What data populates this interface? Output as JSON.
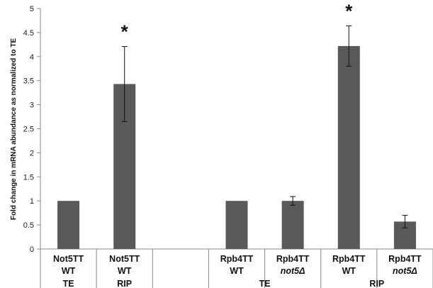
{
  "chart_data": {
    "type": "bar",
    "title": "",
    "ylabel": "Fold change in mRNA abundance as normalized to TE",
    "xlabel": "",
    "ylim": [
      0,
      5
    ],
    "yticks": [
      "0",
      "0.5",
      "1",
      "1.5",
      "2",
      "2.5",
      "3",
      "3.5",
      "4",
      "4.5",
      "5"
    ],
    "bar_color": "#595959",
    "grid": false,
    "categories": [
      {
        "line1": "Not5TT",
        "line2": "WT",
        "line3": "TE",
        "value": 1.0,
        "err": 0.0,
        "star": "",
        "italic2": false
      },
      {
        "line1": "Not5TT",
        "line2": "WT",
        "line3": "RIP",
        "value": 3.43,
        "err": 0.78,
        "star": "*",
        "italic2": false
      },
      {
        "line1": "",
        "line2": "",
        "line3": "",
        "value": null,
        "err": null,
        "star": "",
        "italic2": false
      },
      {
        "line1": "Rpb4TT",
        "line2": "WT",
        "line3": "",
        "value": 1.0,
        "err": 0.0,
        "star": "",
        "italic2": false
      },
      {
        "line1": "Rpb4TT",
        "line2": "not5Δ",
        "line3": "",
        "value": 1.0,
        "err": 0.09,
        "star": "",
        "italic2": true
      },
      {
        "line1": "Rpb4TT",
        "line2": "WT",
        "line3": "",
        "value": 4.22,
        "err": 0.42,
        "star": "*",
        "italic2": false
      },
      {
        "line1": "Rpb4TT",
        "line2": "not5Δ",
        "line3": "",
        "value": 0.57,
        "err": 0.13,
        "star": "",
        "italic2": true
      }
    ],
    "group_labels": [
      {
        "text": "TE",
        "span": [
          3,
          4
        ]
      },
      {
        "text": "RIP",
        "span": [
          5,
          6
        ]
      }
    ]
  }
}
